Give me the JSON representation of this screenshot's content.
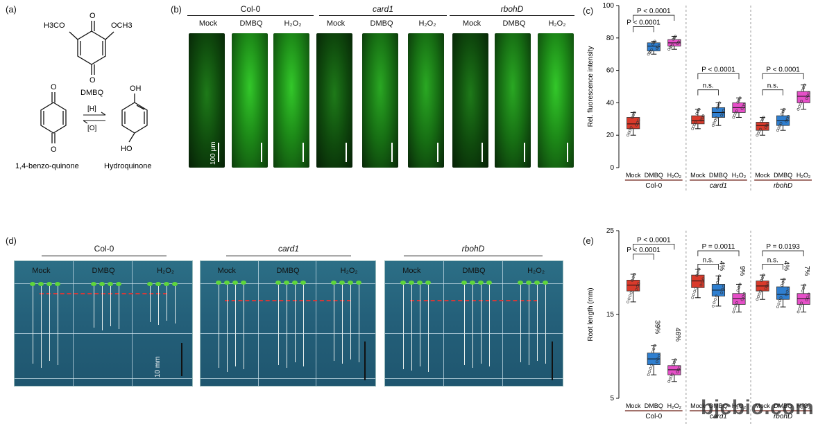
{
  "panels": {
    "a": "(a)",
    "b": "(b)",
    "c": "(c)",
    "d": "(d)",
    "e": "(e)"
  },
  "chem": {
    "h3co": "H3CO",
    "och3": "OCH3",
    "o": "O",
    "dmbq": "DMBQ",
    "oh": "OH",
    "ho": "HO",
    "h_bracket": "[H]",
    "o_bracket": "[O]",
    "benzoquinone": "1,4-benzo-quinone",
    "hydroquinone": "Hydroquinone"
  },
  "microscopy": {
    "genotypes": [
      "Col-0",
      "card1",
      "rbohD"
    ],
    "treatments": [
      "Mock",
      "DMBQ",
      "H₂O₂",
      "Mock",
      "DMBQ",
      "H₂O₂",
      "Mock",
      "DMBQ",
      "H₂O₂"
    ],
    "scale_label": "100 μm"
  },
  "plates": {
    "genotypes": [
      "Col-0",
      "card1",
      "rbohD"
    ],
    "treatments": [
      "Mock",
      "DMBQ",
      "H₂O₂"
    ],
    "scale_label": "10 mm"
  },
  "chart_c": {
    "ylabel": "Rel. fluorescence intensity",
    "yticks": [
      "0",
      "20",
      "40",
      "60",
      "80",
      "100"
    ],
    "xticks": [
      "Mock",
      "DMBQ",
      "H₂O₂",
      "Mock",
      "DMBQ",
      "H₂O₂",
      "Mock",
      "DMBQ",
      "H₂O₂"
    ],
    "groups": [
      "Col-0",
      "card1",
      "rbohD"
    ],
    "annotations": [
      "P < 0.0001",
      "P < 0.0001",
      "n.s.",
      "P < 0.0001",
      "n.s.",
      "P < 0.0001"
    ]
  },
  "chart_e": {
    "ylabel": "Root length (mm)",
    "yticks": [
      "5",
      "15",
      "25"
    ],
    "xticks": [
      "Mock",
      "DMBQ",
      "H₂O₂",
      "Mock",
      "DMBQ",
      "H₂O₂",
      "Mock",
      "DMBQ",
      "H₂O₂"
    ],
    "groups": [
      "Col-0",
      "card1",
      "rbohD"
    ],
    "annotations": [
      "P < 0.0001",
      "P < 0.0001",
      "n.s.",
      "P = 0.0011",
      "n.s.",
      "P = 0.0193"
    ],
    "percents": [
      "39%",
      "46%",
      "4%",
      "9%",
      "4%",
      "7%"
    ]
  },
  "watermark": "bjcbio.com",
  "chart_data": [
    {
      "type": "box",
      "ylabel": "Rel. fluorescence intensity",
      "ylim": [
        0,
        100
      ],
      "categories": [
        "Mock",
        "DMBQ",
        "H₂O₂",
        "Mock",
        "DMBQ",
        "H₂O₂",
        "Mock",
        "DMBQ",
        "H₂O₂"
      ],
      "groups": [
        "Col-0",
        "card1",
        "rbohD"
      ],
      "colors": [
        "#d93a2b",
        "#2f7fd0",
        "#e64fc8"
      ],
      "boxes": [
        {
          "q1": 24,
          "median": 27,
          "q3": 31,
          "min": 20,
          "max": 34
        },
        {
          "q1": 72,
          "median": 75,
          "q3": 77,
          "min": 70,
          "max": 78
        },
        {
          "q1": 75,
          "median": 77,
          "q3": 79,
          "min": 73,
          "max": 81
        },
        {
          "q1": 27,
          "median": 29,
          "q3": 32,
          "min": 24,
          "max": 36
        },
        {
          "q1": 31,
          "median": 34,
          "q3": 37,
          "min": 26,
          "max": 40
        },
        {
          "q1": 34,
          "median": 37,
          "q3": 40,
          "min": 31,
          "max": 43
        },
        {
          "q1": 23,
          "median": 26,
          "q3": 28,
          "min": 20,
          "max": 31
        },
        {
          "q1": 26,
          "median": 29,
          "q3": 32,
          "min": 23,
          "max": 36
        },
        {
          "q1": 40,
          "median": 44,
          "q3": 47,
          "min": 36,
          "max": 51
        }
      ]
    },
    {
      "type": "box",
      "ylabel": "Root length (mm)",
      "ylim": [
        5,
        25
      ],
      "categories": [
        "Mock",
        "DMBQ",
        "H₂O₂",
        "Mock",
        "DMBQ",
        "H₂O₂",
        "Mock",
        "DMBQ",
        "H₂O₂"
      ],
      "groups": [
        "Col-0",
        "card1",
        "rbohD"
      ],
      "colors": [
        "#d93a2b",
        "#2f7fd0",
        "#e64fc8"
      ],
      "boxes": [
        {
          "q1": 17.8,
          "median": 18.5,
          "q3": 19.1,
          "min": 16.5,
          "max": 19.8
        },
        {
          "q1": 9.0,
          "median": 9.7,
          "q3": 10.4,
          "min": 7.8,
          "max": 11.3
        },
        {
          "q1": 7.8,
          "median": 8.4,
          "q3": 8.9,
          "min": 7.0,
          "max": 9.6
        },
        {
          "q1": 18.2,
          "median": 19.0,
          "q3": 19.7,
          "min": 17.0,
          "max": 20.4
        },
        {
          "q1": 17.2,
          "median": 17.9,
          "q3": 18.6,
          "min": 16.0,
          "max": 19.6
        },
        {
          "q1": 16.2,
          "median": 16.9,
          "q3": 17.5,
          "min": 15.3,
          "max": 18.6
        },
        {
          "q1": 17.8,
          "median": 18.4,
          "q3": 19.0,
          "min": 16.8,
          "max": 19.7
        },
        {
          "q1": 16.8,
          "median": 17.4,
          "q3": 18.3,
          "min": 15.9,
          "max": 19.2
        },
        {
          "q1": 16.2,
          "median": 16.9,
          "q3": 17.5,
          "min": 15.3,
          "max": 18.5
        }
      ]
    }
  ]
}
